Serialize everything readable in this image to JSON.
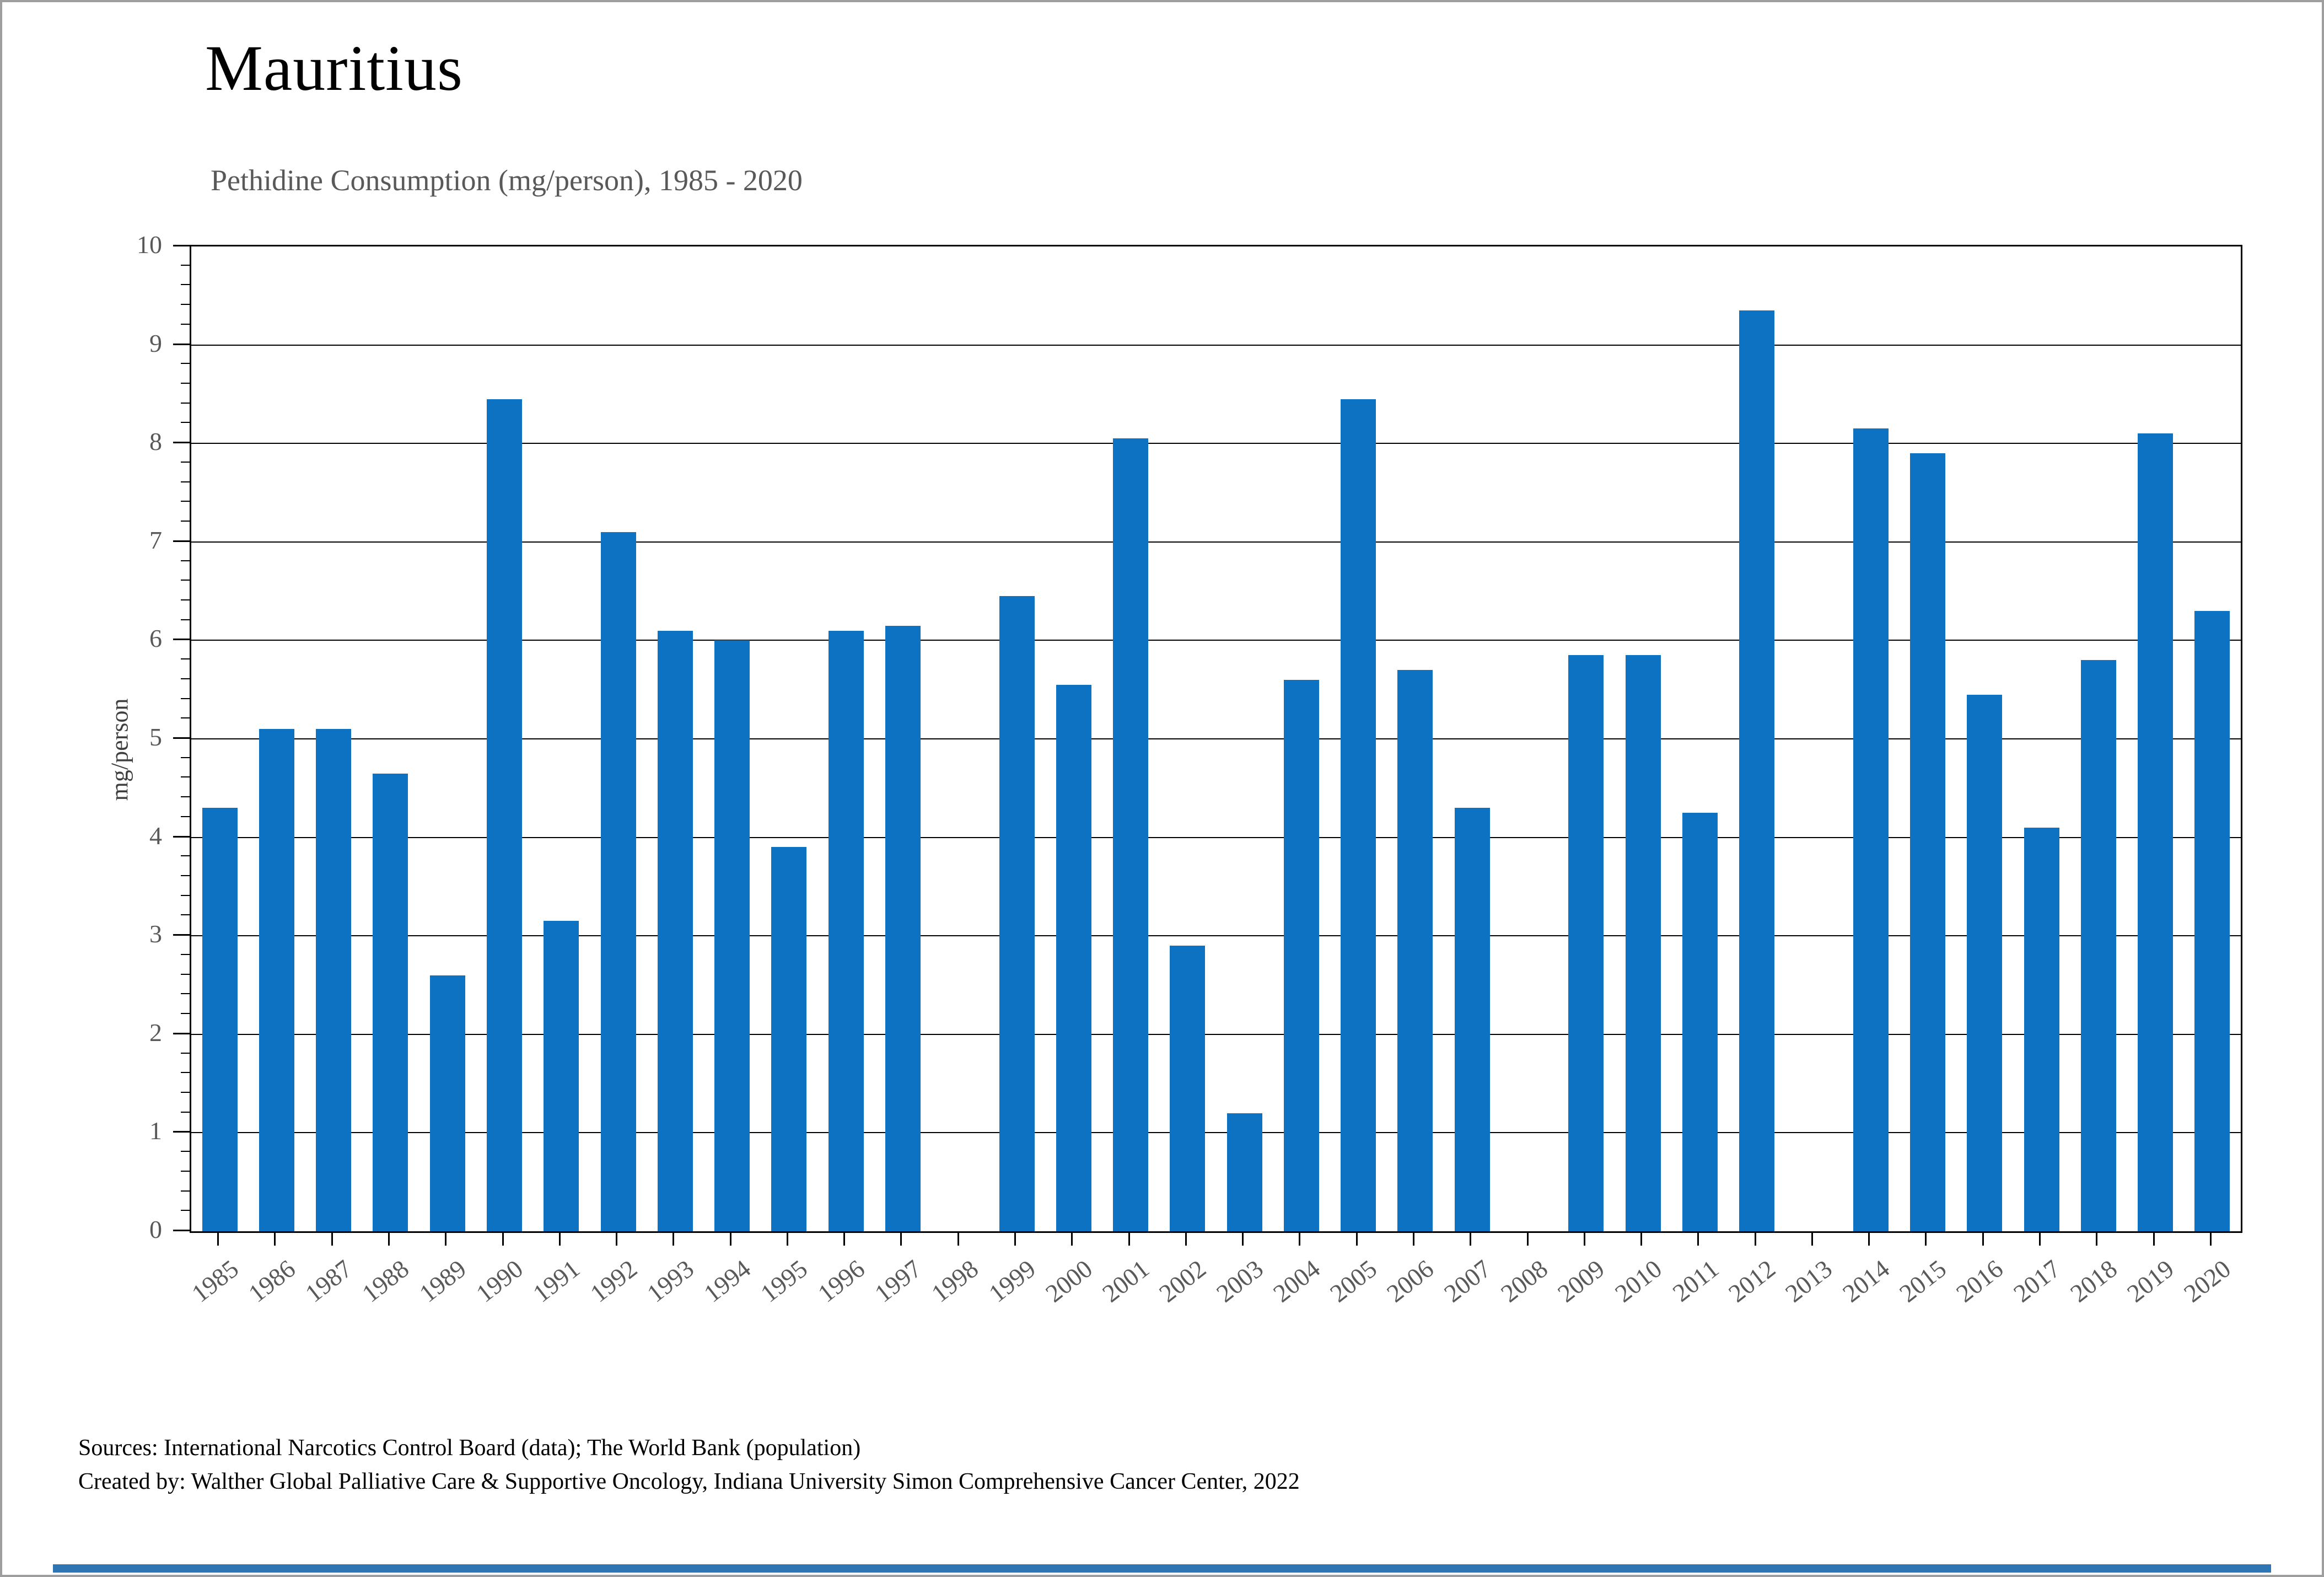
{
  "title": "Mauritius",
  "subtitle": "Pethidine Consumption (mg/person), 1985 - 2020",
  "y_axis_title": "mg/person",
  "footer": {
    "sources_line": "Sources: International Narcotics Control Board (data); The World Bank (population)",
    "created_line": "Created by: Walther Global Palliative Care & Supportive Oncology, Indiana University Simon Comprehensive Cancer Center, 2022"
  },
  "colors": {
    "bar": "#0d72c2",
    "subtitle_gray": "#595959",
    "tick_label_gray": "#595959",
    "bottom_strip_blue": "#2e75b6",
    "page_border_gray": "#9e9e9e"
  },
  "chart_data": {
    "type": "bar",
    "title": "Mauritius",
    "subtitle": "Pethidine Consumption (mg/person), 1985 - 2020",
    "xlabel": "",
    "ylabel": "mg/person",
    "ylim": [
      0,
      10
    ],
    "y_major_step": 1,
    "y_minor_step": 0.2,
    "grid": "horizontal-major",
    "legend": "none",
    "y_tick_labels": [
      "0",
      "1",
      "2",
      "3",
      "4",
      "5",
      "6",
      "7",
      "8",
      "9",
      "10"
    ],
    "categories": [
      "1985",
      "1986",
      "1987",
      "1988",
      "1989",
      "1990",
      "1991",
      "1992",
      "1993",
      "1994",
      "1995",
      "1996",
      "1997",
      "1998",
      "1999",
      "2000",
      "2001",
      "2002",
      "2003",
      "2004",
      "2005",
      "2006",
      "2007",
      "2008",
      "2009",
      "2010",
      "2011",
      "2012",
      "2013",
      "2014",
      "2015",
      "2016",
      "2017",
      "2018",
      "2019",
      "2020"
    ],
    "values": [
      4.3,
      5.1,
      5.1,
      4.65,
      2.6,
      8.45,
      3.15,
      7.1,
      6.1,
      6.0,
      3.9,
      6.1,
      6.15,
      0,
      6.45,
      5.55,
      8.05,
      2.9,
      1.2,
      5.6,
      8.45,
      5.7,
      4.3,
      0,
      5.85,
      5.85,
      4.25,
      9.35,
      0,
      8.15,
      7.9,
      5.45,
      4.1,
      5.8,
      8.1,
      6.3
    ]
  }
}
